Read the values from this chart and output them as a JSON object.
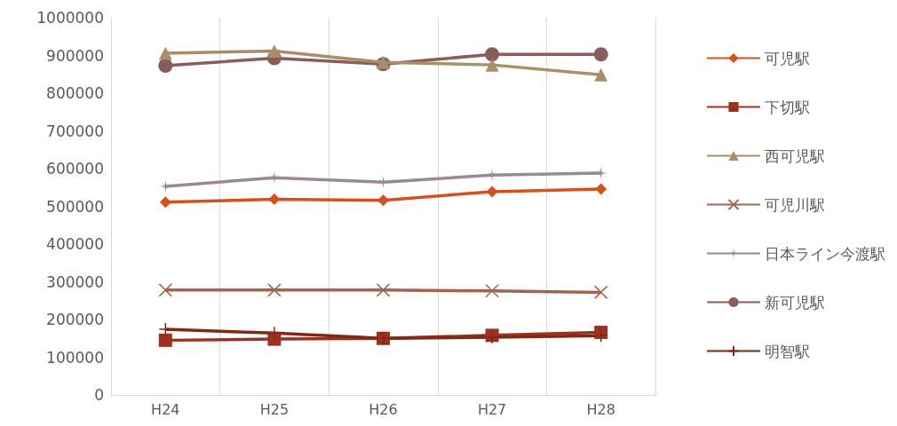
{
  "chart_data": {
    "type": "line",
    "categories": [
      "H24",
      "H25",
      "H26",
      "H27",
      "H28"
    ],
    "ylim": [
      0,
      1000000
    ],
    "yticks": [
      0,
      100000,
      200000,
      300000,
      400000,
      500000,
      600000,
      700000,
      800000,
      900000,
      1000000
    ],
    "grid": "x",
    "legend": "right",
    "series": [
      {
        "name": "可児駅",
        "color": "#d4501c",
        "marker": "diamond",
        "values": [
          511000,
          519000,
          516000,
          539000,
          546000
        ]
      },
      {
        "name": "下切駅",
        "color": "#9e3022",
        "marker": "square",
        "values": [
          145000,
          148000,
          150000,
          158000,
          166000
        ]
      },
      {
        "name": "西可児駅",
        "color": "#a59068",
        "marker": "triangle",
        "values": [
          906000,
          912000,
          882000,
          875000,
          849000
        ]
      },
      {
        "name": "可児川駅",
        "color": "#a0654f",
        "marker": "cross",
        "values": [
          278000,
          278000,
          278000,
          276000,
          272000
        ]
      },
      {
        "name": "日本ライン今渡駅",
        "color": "#9a8a8a",
        "marker": "star",
        "values": [
          553000,
          576000,
          564000,
          583000,
          588000
        ]
      },
      {
        "name": "新可児駅",
        "color": "#8a5c5c",
        "marker": "circle",
        "values": [
          873000,
          893000,
          877000,
          903000,
          903000
        ]
      },
      {
        "name": "明智駅",
        "color": "#7e2a12",
        "marker": "plus",
        "values": [
          174000,
          164000,
          150000,
          153000,
          157000
        ]
      }
    ]
  }
}
